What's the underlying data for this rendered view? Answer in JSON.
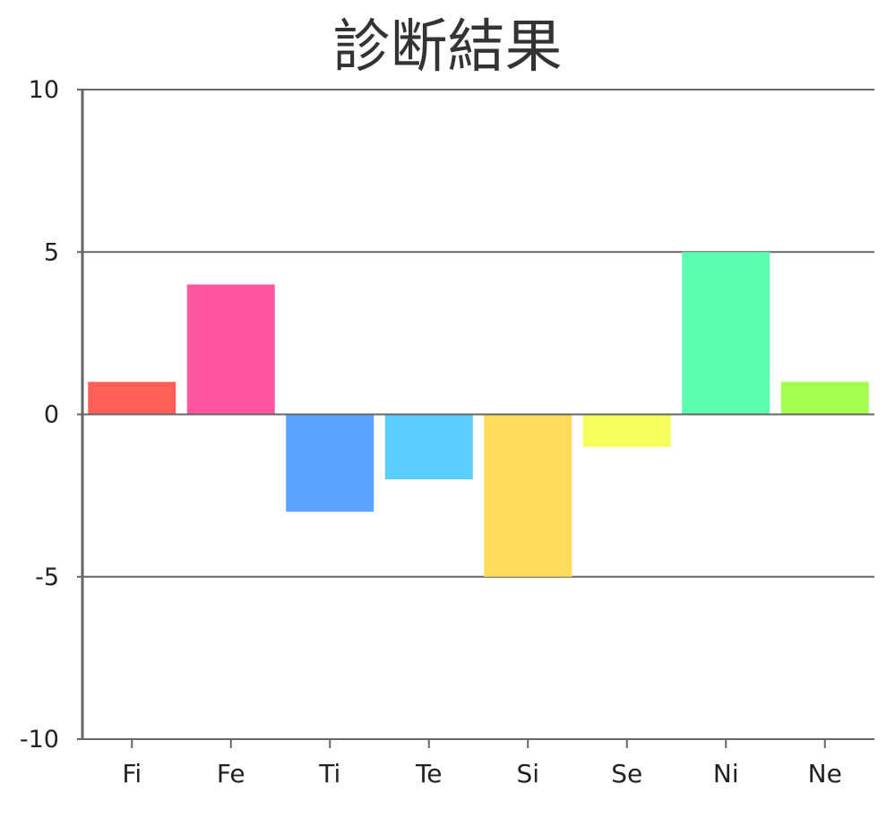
{
  "chart_data": {
    "type": "bar",
    "title": "診断結果",
    "xlabel": "",
    "ylabel": "",
    "categories": [
      "Fi",
      "Fe",
      "Ti",
      "Te",
      "Si",
      "Se",
      "Ni",
      "Ne"
    ],
    "values": [
      1,
      4,
      -3,
      -2,
      -5,
      -1,
      5,
      1
    ],
    "colors": [
      "#ff5f57",
      "#ff579f",
      "#5ba4ff",
      "#5ccdff",
      "#ffdb5b",
      "#f4ff5a",
      "#5cffaf",
      "#a4ff4f"
    ],
    "ylim": [
      -10,
      10
    ],
    "yticks": [
      10,
      5,
      0,
      -5,
      -10
    ],
    "ytick_labels": [
      "10",
      "5",
      "0",
      "-5",
      "-10"
    ],
    "grid": true,
    "legend": "none"
  }
}
